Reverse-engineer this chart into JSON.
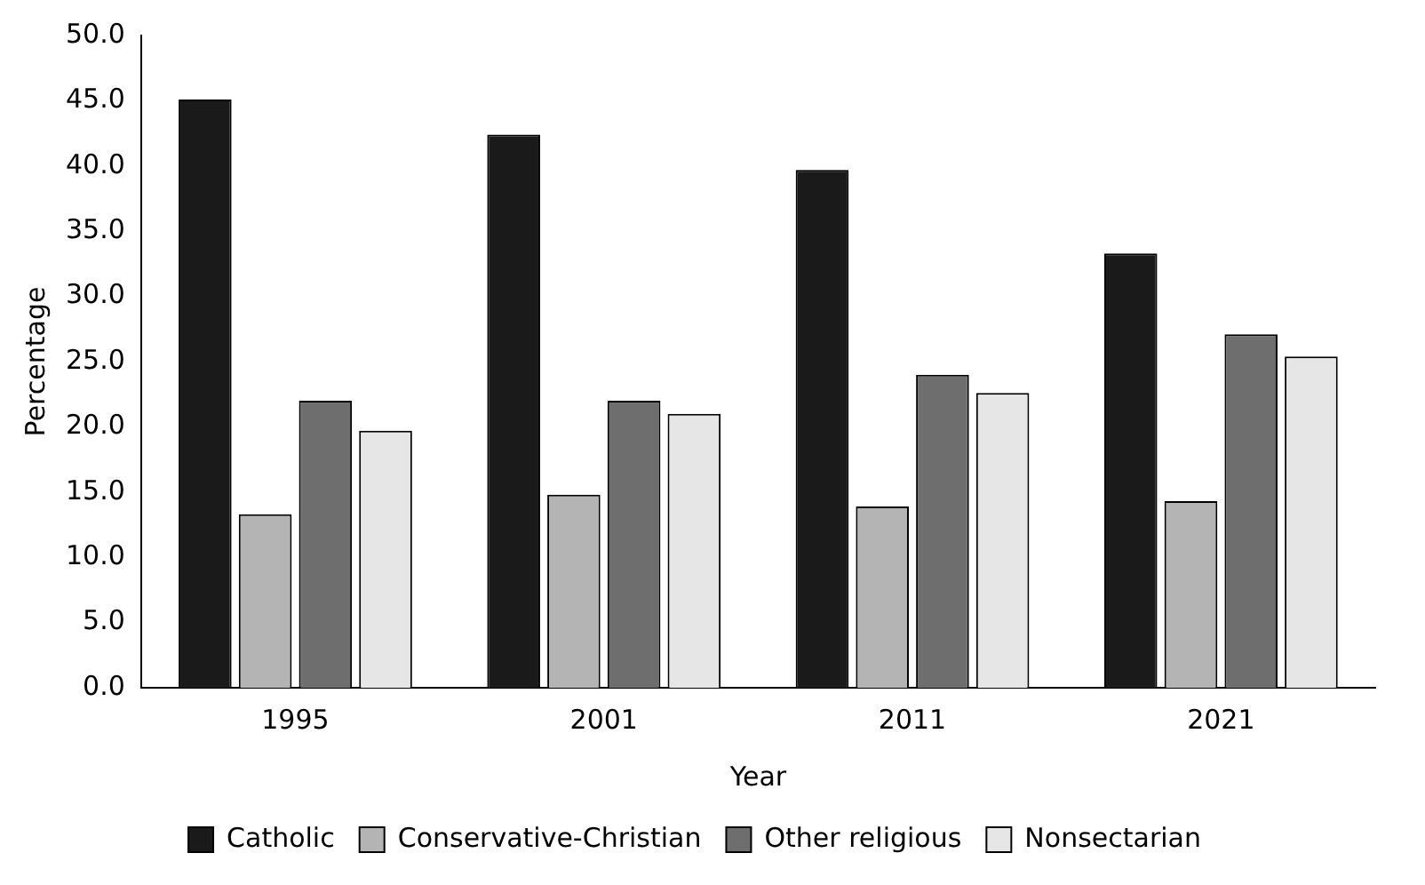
{
  "chart_data": {
    "type": "bar",
    "xlabel": "Year",
    "ylabel": "Percentage",
    "categories": [
      "1995",
      "2001",
      "2011",
      "2021"
    ],
    "series": [
      {
        "name": "Catholic",
        "color": "#1a1a1a",
        "values": [
          45.1,
          42.4,
          39.7,
          33.3
        ]
      },
      {
        "name": "Conservative-Christian",
        "color": "#b4b4b4",
        "values": [
          13.3,
          14.8,
          13.9,
          14.3
        ]
      },
      {
        "name": "Other religious",
        "color": "#6e6e6e",
        "values": [
          22.0,
          22.0,
          24.0,
          27.1
        ]
      },
      {
        "name": "Nonsectarian",
        "color": "#e6e6e6",
        "values": [
          19.7,
          21.0,
          22.6,
          25.4
        ]
      }
    ],
    "ylim": [
      0,
      50
    ],
    "yticks": [
      {
        "value": 0,
        "label": "0.0"
      },
      {
        "value": 5,
        "label": "5.0"
      },
      {
        "value": 10,
        "label": "10.0"
      },
      {
        "value": 15,
        "label": "15.0"
      },
      {
        "value": 20,
        "label": "20.0"
      },
      {
        "value": 25,
        "label": "25.0"
      },
      {
        "value": 30,
        "label": "30.0"
      },
      {
        "value": 35,
        "label": "35.0"
      },
      {
        "value": 40,
        "label": "40.0"
      },
      {
        "value": 45,
        "label": "45.0"
      },
      {
        "value": 50,
        "label": "50.0"
      }
    ],
    "grid": false,
    "legend": "bottom"
  }
}
